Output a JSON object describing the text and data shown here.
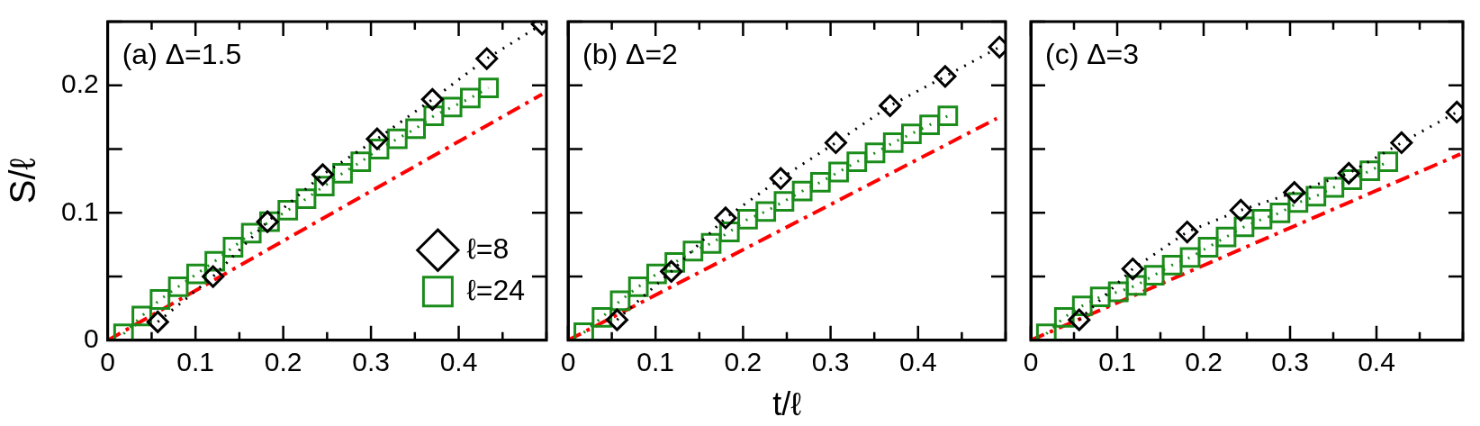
{
  "chart_data": [
    {
      "type": "line",
      "ylabel": "S/ℓ",
      "annotations": [
        "(a) Δ=1.5"
      ],
      "xlim": [
        0,
        0.5
      ],
      "ylim": [
        0,
        0.25
      ],
      "xticks": [
        0,
        {
          "value": 0.05,
          "label": null
        },
        0.1,
        {
          "value": 0.15,
          "label": null
        },
        0.2,
        {
          "value": 0.25,
          "label": null
        },
        0.3,
        {
          "value": 0.35,
          "label": null
        },
        0.4,
        {
          "value": 0.45,
          "label": null
        },
        {
          "value": 0.5,
          "label": null
        }
      ],
      "yticks": [
        0,
        {
          "value": 0.05,
          "label": null
        },
        0.1,
        {
          "value": 0.15,
          "label": null
        },
        0.2,
        {
          "value": 0.25,
          "label": null
        }
      ],
      "grid": false,
      "legend": "bottom right",
      "series": [
        {
          "name": "ℓ=8",
          "color": "#000000",
          "marker": "diamond",
          "line_style": "dotted",
          "x": [
            0.057,
            0.12,
            0.182,
            0.245,
            0.307,
            0.37,
            0.432,
            0.495
          ],
          "values": [
            0.0144,
            0.05,
            0.093,
            0.13,
            0.158,
            0.189,
            0.221,
            0.248
          ]
        },
        {
          "name": "ℓ=24",
          "color": "#1a8c1a",
          "marker": "square",
          "line_style": "dotted",
          "x": [
            0.018,
            0.0388,
            0.0596,
            0.0804,
            0.1012,
            0.122,
            0.1428,
            0.1636,
            0.1844,
            0.2052,
            0.226,
            0.2468,
            0.2676,
            0.2884,
            0.3092,
            0.33,
            0.3508,
            0.3716,
            0.3924,
            0.4132,
            0.434
          ],
          "values": [
            0.005,
            0.019,
            0.032,
            0.042,
            0.052,
            0.062,
            0.073,
            0.084,
            0.093,
            0.102,
            0.111,
            0.121,
            0.131,
            0.14,
            0.15,
            0.158,
            0.166,
            0.176,
            0.183,
            0.19,
            0.198
          ]
        },
        {
          "color": "#ff0000",
          "marker": "none",
          "line_style": "dashed",
          "x": [
            0,
            0.495
          ],
          "values": [
            0,
            0.193
          ]
        }
      ]
    },
    {
      "type": "line",
      "xlabel": "t/ℓ",
      "annotations": [
        "(b) Δ=2"
      ],
      "xlim": [
        0,
        0.5
      ],
      "ylim": [
        0,
        0.25
      ],
      "tick_labels": "x",
      "xticks": [
        0,
        {
          "value": 0.05,
          "label": null
        },
        0.1,
        {
          "value": 0.15,
          "label": null
        },
        0.2,
        {
          "value": 0.25,
          "label": null
        },
        0.3,
        {
          "value": 0.35,
          "label": null
        },
        0.4,
        {
          "value": 0.45,
          "label": null
        },
        {
          "value": 0.5,
          "label": null
        }
      ],
      "yticks": [
        0,
        {
          "value": 0.05,
          "label": null
        },
        0.1,
        {
          "value": 0.15,
          "label": null
        },
        0.2,
        {
          "value": 0.25,
          "label": null
        }
      ],
      "grid": false,
      "legend": false,
      "series": [
        {
          "color": "#000000",
          "marker": "diamond",
          "line_style": "dotted",
          "x": [
            0.056,
            0.118,
            0.18,
            0.243,
            0.306,
            0.368,
            0.431,
            0.493
          ],
          "values": [
            0.016,
            0.054,
            0.096,
            0.127,
            0.155,
            0.184,
            0.207,
            0.23
          ]
        },
        {
          "color": "#1a8c1a",
          "marker": "square",
          "line_style": "dotted",
          "x": [
            0.018,
            0.0388,
            0.0596,
            0.0804,
            0.1012,
            0.122,
            0.1428,
            0.1636,
            0.1844,
            0.2052,
            0.226,
            0.2468,
            0.2676,
            0.2884,
            0.3092,
            0.33,
            0.3508,
            0.3716,
            0.3924,
            0.4132,
            0.434
          ],
          "values": [
            0.006,
            0.018,
            0.031,
            0.042,
            0.052,
            0.061,
            0.07,
            0.076,
            0.085,
            0.095,
            0.101,
            0.109,
            0.117,
            0.124,
            0.132,
            0.14,
            0.147,
            0.155,
            0.162,
            0.169,
            0.176
          ]
        },
        {
          "color": "#ff0000",
          "marker": "none",
          "line_style": "dashed",
          "x": [
            0,
            0.49
          ],
          "values": [
            0,
            0.174
          ]
        }
      ]
    },
    {
      "type": "line",
      "annotations": [
        "(c) Δ=3"
      ],
      "xlim": [
        0,
        0.5
      ],
      "ylim": [
        0,
        0.25
      ],
      "tick_labels": "x",
      "xticks": [
        0,
        {
          "value": 0.05,
          "label": null
        },
        0.1,
        {
          "value": 0.15,
          "label": null
        },
        0.2,
        {
          "value": 0.25,
          "label": null
        },
        0.3,
        {
          "value": 0.35,
          "label": null
        },
        0.4,
        {
          "value": 0.45,
          "label": null
        },
        {
          "value": 0.5,
          "label": null
        }
      ],
      "yticks": [
        0,
        {
          "value": 0.05,
          "label": null
        },
        0.1,
        {
          "value": 0.15,
          "label": null
        },
        0.2,
        {
          "value": 0.25,
          "label": null
        }
      ],
      "grid": false,
      "legend": false,
      "series": [
        {
          "color": "#000000",
          "marker": "diamond",
          "line_style": "dotted",
          "x": [
            0.056,
            0.118,
            0.181,
            0.243,
            0.305,
            0.368,
            0.429,
            0.493
          ],
          "values": [
            0.016,
            0.056,
            0.085,
            0.102,
            0.116,
            0.131,
            0.155,
            0.179
          ]
        },
        {
          "color": "#1a8c1a",
          "marker": "square",
          "line_style": "dotted",
          "x": [
            0.018,
            0.0388,
            0.0596,
            0.0804,
            0.1012,
            0.122,
            0.1428,
            0.1636,
            0.1844,
            0.2052,
            0.226,
            0.2468,
            0.2676,
            0.2884,
            0.3092,
            0.33,
            0.3508,
            0.3716,
            0.3924,
            0.4132
          ],
          "values": [
            0.005,
            0.018,
            0.027,
            0.034,
            0.038,
            0.043,
            0.051,
            0.059,
            0.065,
            0.073,
            0.081,
            0.089,
            0.095,
            0.1,
            0.108,
            0.113,
            0.12,
            0.126,
            0.133,
            0.14
          ]
        },
        {
          "color": "#ff0000",
          "marker": "none",
          "line_style": "dashed",
          "x": [
            0,
            0.497
          ],
          "values": [
            0,
            0.146
          ]
        }
      ]
    }
  ]
}
